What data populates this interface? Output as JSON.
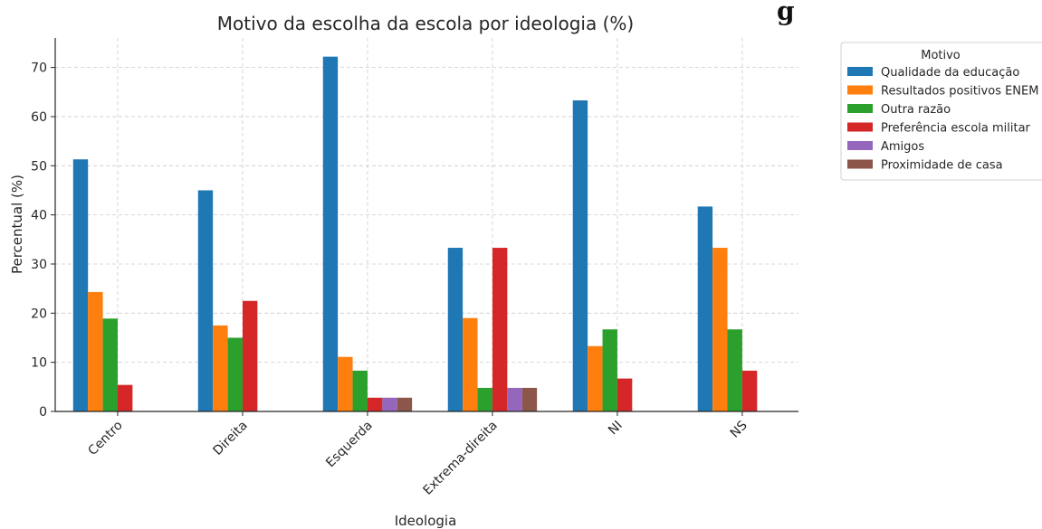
{
  "cut_text": "g",
  "colors": [
    "#1f77b4",
    "#ff7f0e",
    "#2ca02c",
    "#d62728",
    "#9467bd",
    "#8c564b"
  ],
  "chart_data": {
    "type": "bar",
    "title": "Motivo da escolha da escola por ideologia (%)",
    "xlabel": "Ideologia",
    "ylabel": "Percentual (%)",
    "ylim": [
      0,
      76
    ],
    "yticks": [
      0,
      10,
      20,
      30,
      40,
      50,
      60,
      70
    ],
    "grid": true,
    "legend_title": "Motivo",
    "legend_position": "outside-top-right",
    "categories": [
      "Centro",
      "Direita",
      "Esquerda",
      "Extrema-direita",
      "NI",
      "NS"
    ],
    "series": [
      {
        "name": "Qualidade da educação",
        "values": [
          51.3,
          45.0,
          72.2,
          33.3,
          63.3,
          41.7
        ]
      },
      {
        "name": "Resultados positivos ENEM",
        "values": [
          24.3,
          17.5,
          11.1,
          19.0,
          13.3,
          33.3
        ]
      },
      {
        "name": "Outra razão",
        "values": [
          18.9,
          15.0,
          8.3,
          4.8,
          16.7,
          16.7
        ]
      },
      {
        "name": "Preferência escola militar",
        "values": [
          5.4,
          22.5,
          2.8,
          33.3,
          6.7,
          8.3
        ]
      },
      {
        "name": "Amigos",
        "values": [
          0,
          0,
          2.8,
          4.8,
          0,
          0
        ]
      },
      {
        "name": "Proximidade de casa",
        "values": [
          0,
          0,
          2.8,
          4.8,
          0,
          0
        ]
      }
    ]
  }
}
